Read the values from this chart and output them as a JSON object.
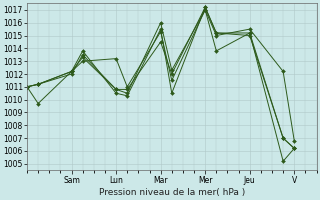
{
  "xlabel": "Pression niveau de la mer( hPa )",
  "background_color": "#cce8e8",
  "grid_color": "#b0c8c8",
  "line_color": "#2d5a1b",
  "ylim": [
    1004.5,
    1017.5
  ],
  "yticks": [
    1005,
    1006,
    1007,
    1008,
    1009,
    1010,
    1011,
    1012,
    1013,
    1014,
    1015,
    1016,
    1017
  ],
  "day_labels": [
    "Sam",
    "Lun",
    "Mar",
    "Mer",
    "Jeu",
    "V"
  ],
  "day_positions": [
    24,
    48,
    72,
    96,
    120,
    144
  ],
  "xlim": [
    0,
    156
  ],
  "lines": [
    {
      "x": [
        0,
        6,
        24,
        30,
        48,
        54,
        72,
        78,
        96,
        102,
        120,
        138,
        144
      ],
      "y": [
        1011.0,
        1009.7,
        1012.2,
        1013.8,
        1010.5,
        1010.3,
        1015.5,
        1010.5,
        1017.2,
        1015.2,
        1015.2,
        1007.0,
        1006.2
      ]
    },
    {
      "x": [
        0,
        6,
        24,
        30,
        48,
        54,
        72,
        78,
        96,
        102,
        120,
        138,
        144
      ],
      "y": [
        1011.0,
        1011.2,
        1012.2,
        1013.3,
        1010.8,
        1010.5,
        1016.0,
        1012.3,
        1017.0,
        1015.0,
        1015.5,
        1012.2,
        1006.8
      ]
    },
    {
      "x": [
        0,
        6,
        24,
        30,
        48,
        54,
        72,
        78,
        96,
        102,
        120,
        138,
        144
      ],
      "y": [
        1011.0,
        1011.2,
        1012.2,
        1013.0,
        1013.2,
        1011.0,
        1015.3,
        1011.5,
        1017.0,
        1013.8,
        1015.2,
        1005.2,
        1006.2
      ]
    },
    {
      "x": [
        0,
        6,
        24,
        30,
        48,
        54,
        72,
        78,
        96,
        102,
        120,
        138,
        144
      ],
      "y": [
        1011.0,
        1011.2,
        1012.0,
        1013.5,
        1010.8,
        1010.8,
        1014.5,
        1012.0,
        1017.2,
        1015.2,
        1015.0,
        1007.0,
        1006.2
      ]
    }
  ],
  "tick_fontsize": 5.5,
  "xlabel_fontsize": 6.5
}
